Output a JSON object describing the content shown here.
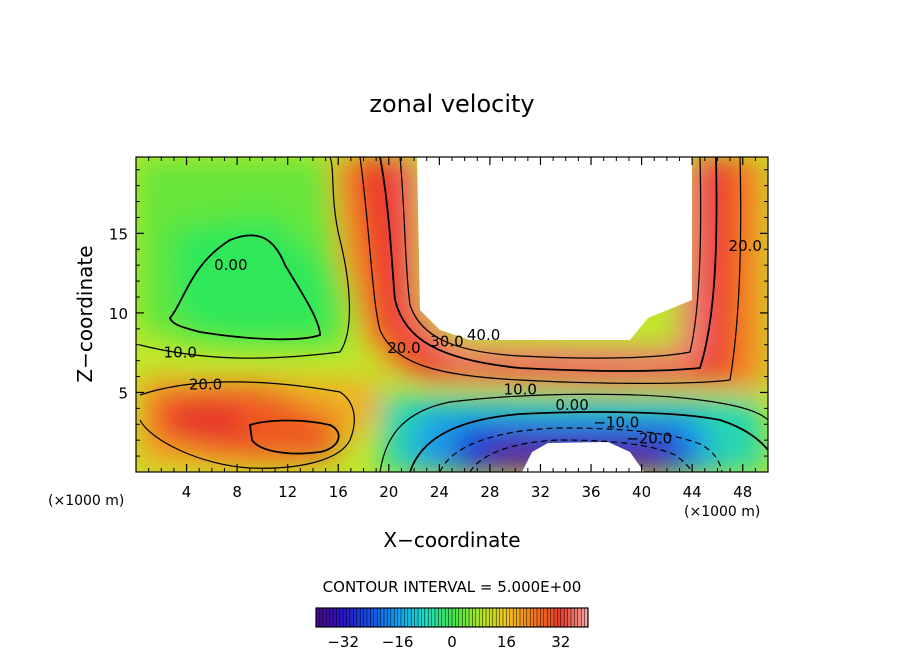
{
  "chart_data": {
    "type": "heatmap",
    "title": "zonal velocity",
    "xlabel": "X−coordinate",
    "ylabel": "Z−coordinate",
    "x_unit_left": "(×1000 m)",
    "x_unit_right": "(×1000 m)",
    "xlim": [
      0,
      50
    ],
    "ylim": [
      0,
      19.8
    ],
    "x_ticks": [
      "4",
      "8",
      "12",
      "16",
      "20",
      "24",
      "28",
      "32",
      "36",
      "40",
      "44",
      "48"
    ],
    "y_ticks": [
      "5",
      "10",
      "15"
    ],
    "contour_interval_text": "CONTOUR INTERVAL = 5.000E+00",
    "colorbar": {
      "ticks": [
        "−32",
        "−16",
        "0",
        "16",
        "32"
      ],
      "range": [
        -40,
        40
      ]
    },
    "contour_labels": [
      {
        "text": "0.00",
        "x": 7.5,
        "z": 13
      },
      {
        "text": "10.0",
        "x": 3.5,
        "z": 7.5
      },
      {
        "text": "20.0",
        "x": 5.5,
        "z": 5.5
      },
      {
        "text": "20.0",
        "x": 21.2,
        "z": 7.8
      },
      {
        "text": "30.0",
        "x": 24.6,
        "z": 8.2
      },
      {
        "text": "40.0",
        "x": 27.5,
        "z": 8.6
      },
      {
        "text": "10.0",
        "x": 30.4,
        "z": 5.2
      },
      {
        "text": "0.00",
        "x": 34.5,
        "z": 4.2
      },
      {
        "text": "−10.0",
        "x": 38.0,
        "z": 3.1
      },
      {
        "text": "−20.0",
        "x": 40.6,
        "z": 2.1
      },
      {
        "text": "20.0",
        "x": 48.2,
        "z": 14.2
      }
    ],
    "colors": {
      "pos_max": "#e8484a",
      "zero": "#3ce84a",
      "neg_max": "#4a0a8a"
    }
  }
}
